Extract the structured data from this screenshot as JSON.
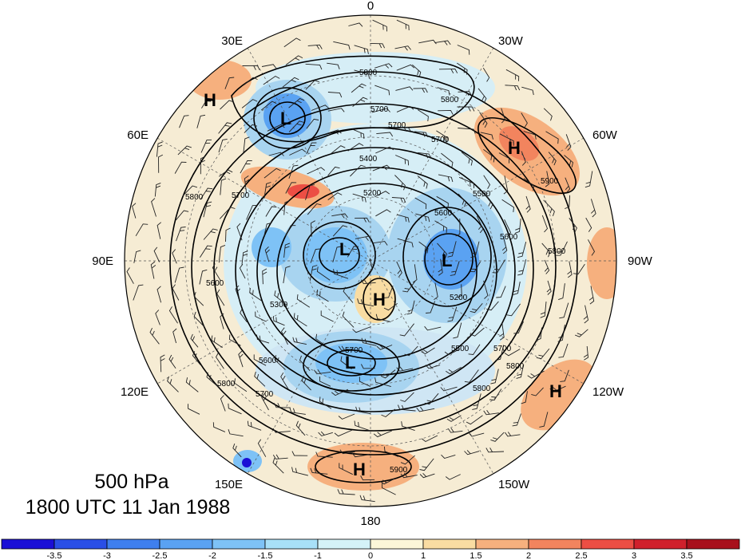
{
  "map": {
    "longitude_labels": [
      {
        "id": "lon-0",
        "text": "0"
      },
      {
        "id": "lon-30w",
        "text": "30W"
      },
      {
        "id": "lon-60w",
        "text": "60W"
      },
      {
        "id": "lon-90w",
        "text": "90W"
      },
      {
        "id": "lon-120w",
        "text": "120W"
      },
      {
        "id": "lon-150w",
        "text": "150W"
      },
      {
        "id": "lon-180",
        "text": "180"
      },
      {
        "id": "lon-150e",
        "text": "150E"
      },
      {
        "id": "lon-120e",
        "text": "120E"
      },
      {
        "id": "lon-90e",
        "text": "90E"
      },
      {
        "id": "lon-60e",
        "text": "60E"
      },
      {
        "id": "lon-30e",
        "text": "30E"
      }
    ],
    "pressure_centers": [
      {
        "id": "high-nw",
        "text": "H"
      },
      {
        "id": "low-north",
        "text": "L"
      },
      {
        "id": "high-ne",
        "text": "H"
      },
      {
        "id": "low-west",
        "text": "L"
      },
      {
        "id": "low-east",
        "text": "L"
      },
      {
        "id": "high-center",
        "text": "H"
      },
      {
        "id": "low-south",
        "text": "L"
      },
      {
        "id": "high-se",
        "text": "H"
      },
      {
        "id": "high-south",
        "text": "H"
      }
    ],
    "contour_labels": [
      {
        "id": "c1",
        "text": "5800"
      },
      {
        "id": "c2",
        "text": "5700"
      },
      {
        "id": "c3",
        "text": "5800"
      },
      {
        "id": "c4",
        "text": "5700"
      },
      {
        "id": "c5",
        "text": "5900"
      },
      {
        "id": "c6",
        "text": "5400"
      },
      {
        "id": "c7",
        "text": "5200"
      },
      {
        "id": "c8",
        "text": "5500"
      },
      {
        "id": "c9",
        "text": "5600"
      },
      {
        "id": "c10",
        "text": "5800"
      },
      {
        "id": "c11",
        "text": "5600"
      },
      {
        "id": "c12",
        "text": "5700"
      },
      {
        "id": "c13",
        "text": "5300"
      },
      {
        "id": "c14",
        "text": "5200"
      },
      {
        "id": "c15",
        "text": "5500"
      },
      {
        "id": "c16",
        "text": "5700"
      },
      {
        "id": "c17",
        "text": "5800"
      },
      {
        "id": "c18",
        "text": "5600"
      },
      {
        "id": "c19",
        "text": "5700"
      },
      {
        "id": "c20",
        "text": "5800"
      },
      {
        "id": "c21",
        "text": "5800"
      },
      {
        "id": "c22",
        "text": "5900"
      },
      {
        "id": "c23",
        "text": "5800"
      },
      {
        "id": "c24",
        "text": "5700"
      },
      {
        "id": "c25",
        "text": "5600"
      },
      {
        "id": "c26",
        "text": "5700"
      }
    ]
  },
  "caption": {
    "level": "500 hPa",
    "time": "1800 UTC 11 Jan 1988"
  },
  "colorbar": {
    "ticks": [
      "-3.5",
      "-3",
      "-2.5",
      "-2",
      "-1.5",
      "-1",
      "0",
      "1",
      "1.5",
      "2",
      "2.5",
      "3",
      "3.5"
    ],
    "colors": [
      "#1a0fd6",
      "#2a4fe6",
      "#3f7fee",
      "#5aa2f2",
      "#7ec2f6",
      "#a8e0f8",
      "#d4f2f8",
      "#fcf6d8",
      "#f9dca2",
      "#f6b07e",
      "#f2845e",
      "#ec4e44",
      "#d0202c",
      "#a8101c"
    ]
  }
}
